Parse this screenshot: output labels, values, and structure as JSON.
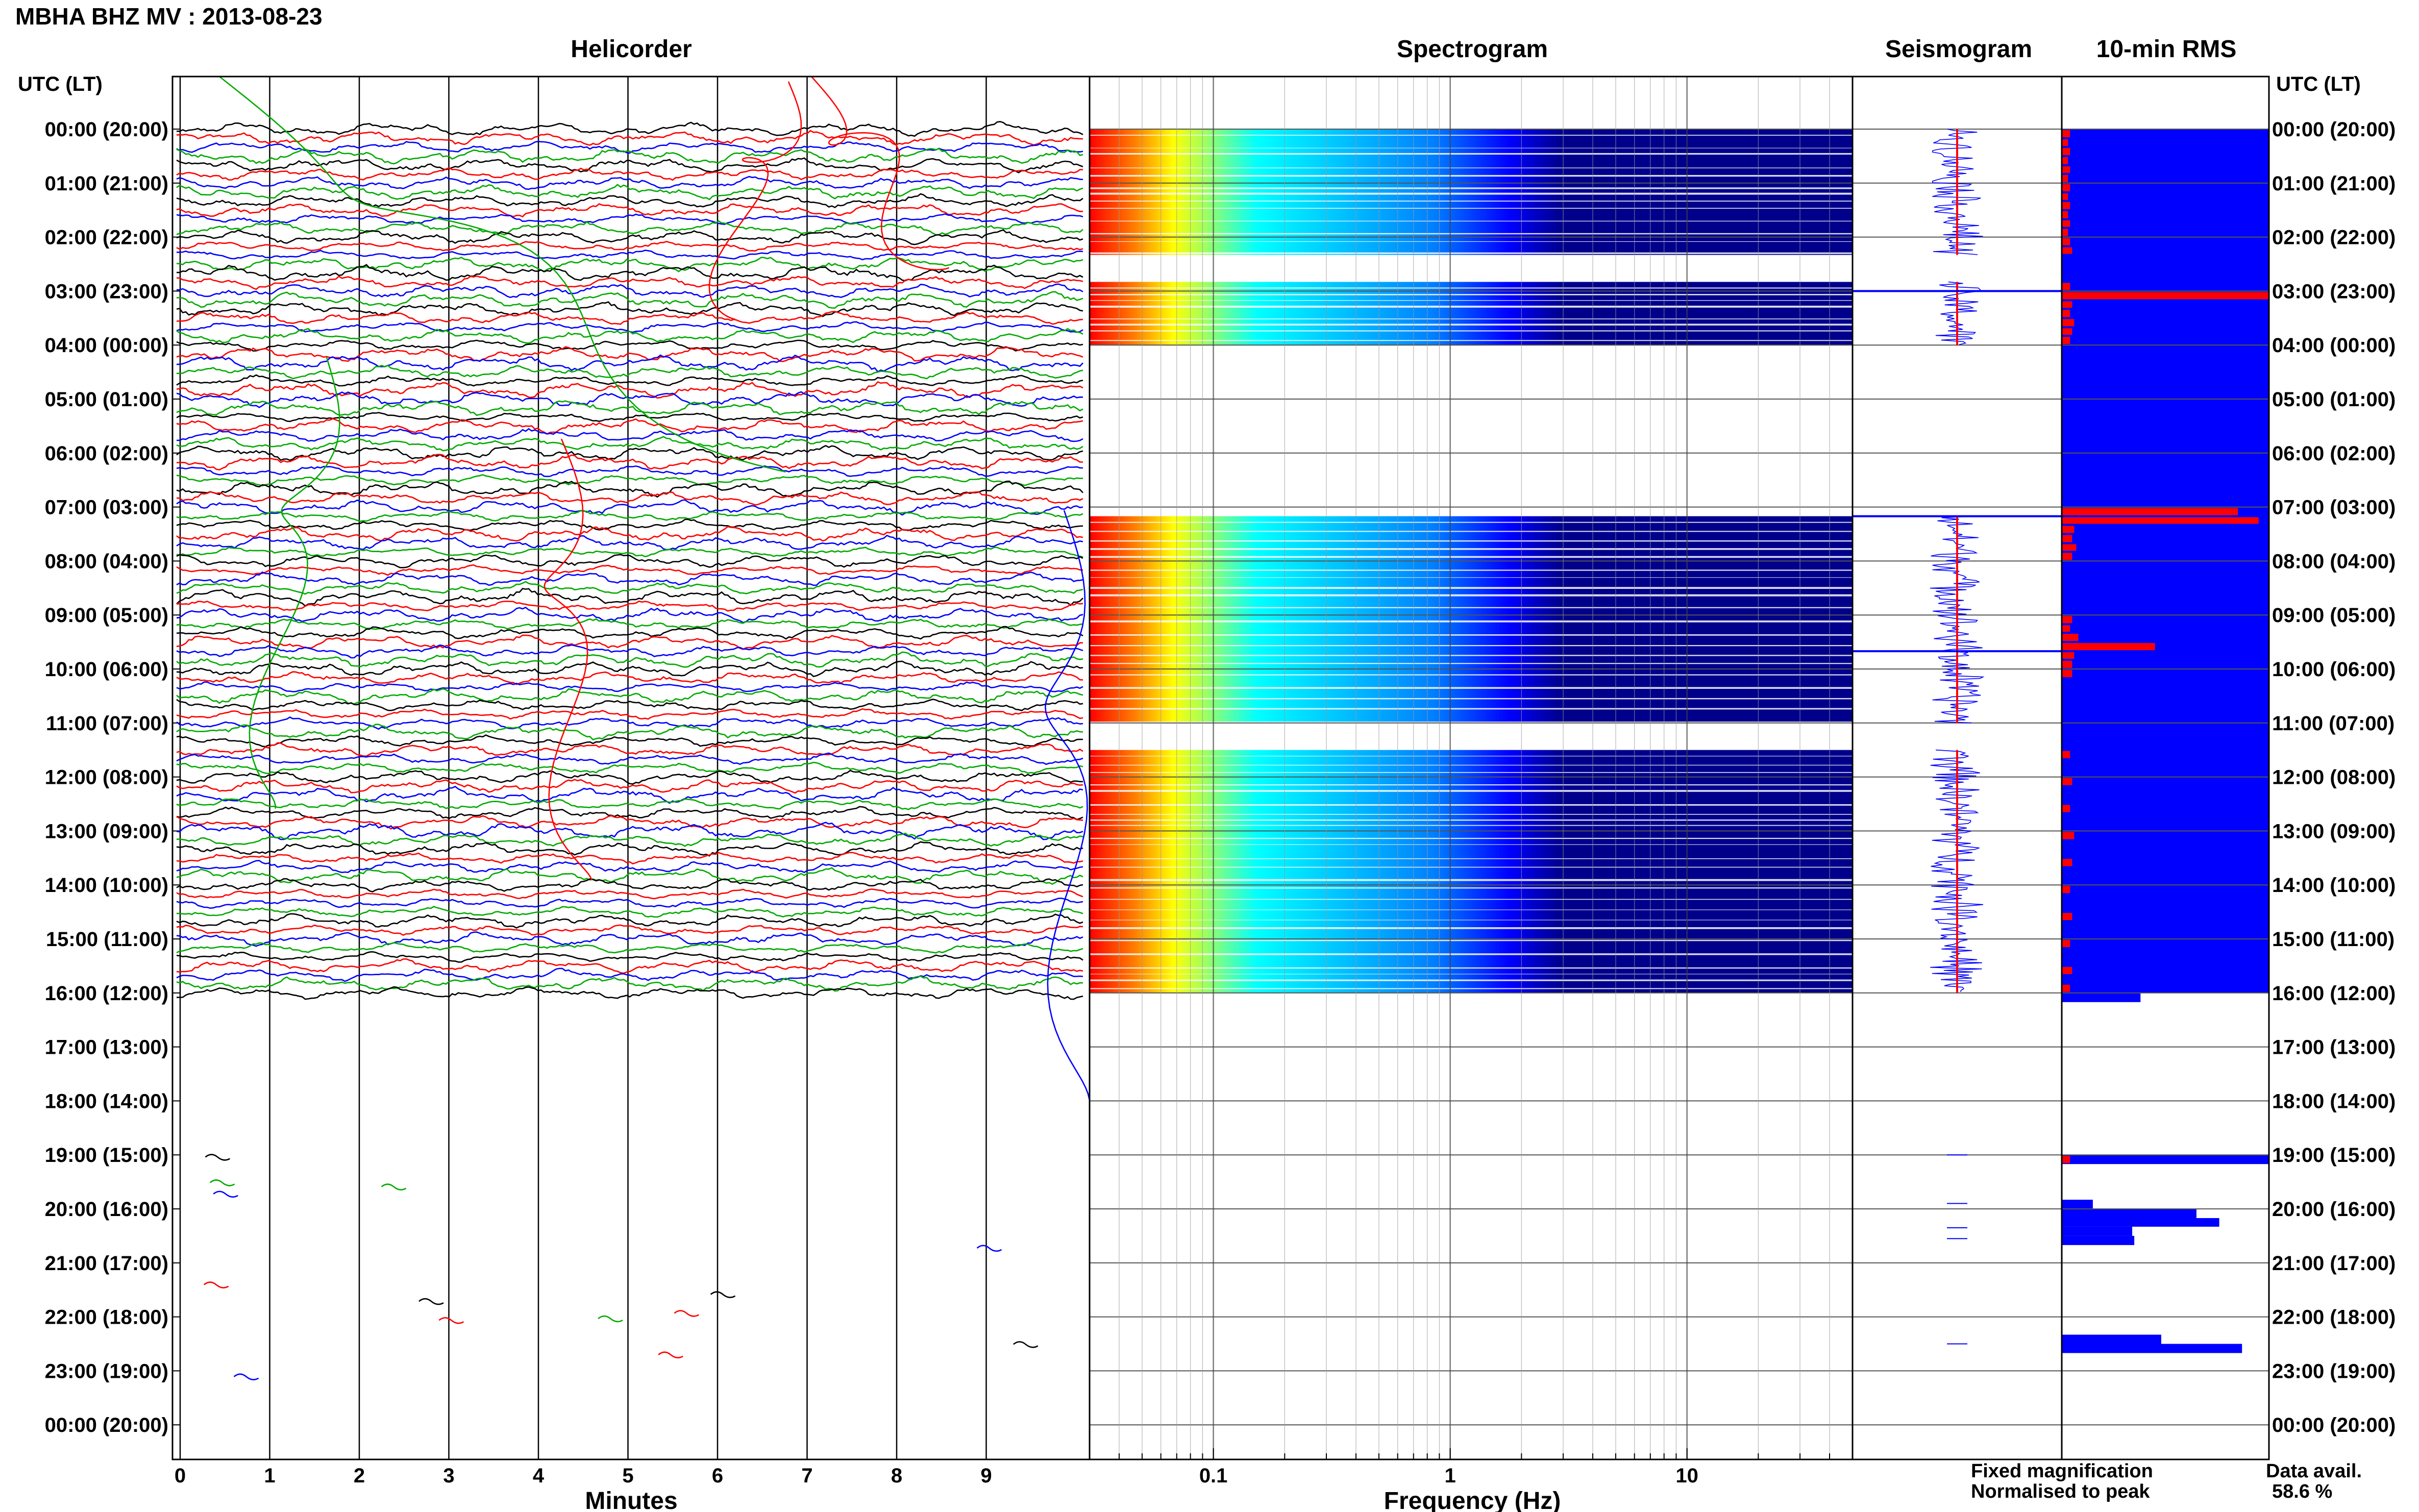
{
  "header": {
    "title": "MBHA BHZ MV : 2013-08-23"
  },
  "panels": {
    "helicorder": "Helicorder",
    "spectrogram": "Spectrogram",
    "seismogram": "Seismogram",
    "rms": "10-min RMS"
  },
  "axis_labels": {
    "time_left": "UTC (LT)",
    "time_right": "UTC (LT)",
    "minutes": "Minutes",
    "frequency": "Frequency (Hz)"
  },
  "legend": {
    "fixed": "Fixed magnification",
    "normalised": "Normalised to peak",
    "fixed_color": "#0000ff",
    "normalised_color": "#ff0000"
  },
  "availability": {
    "label": "Data avail.",
    "value": "58.6 %"
  },
  "colors": {
    "trace": [
      "#000000",
      "#ff0000",
      "#0000ff",
      "#00aa00"
    ],
    "spectrogram_low": "#00008b"
  },
  "chart_data": [
    {
      "type": "line",
      "title": "Helicorder",
      "xlabel": "Minutes",
      "ylabel": "UTC (LT)",
      "x_ticks": [
        0,
        1,
        2,
        3,
        4,
        5,
        6,
        7,
        8,
        9
      ],
      "xlim": [
        0,
        10
      ],
      "time_ticks": [
        "00:00 (20:00)",
        "01:00 (21:00)",
        "02:00 (22:00)",
        "03:00 (23:00)",
        "04:00 (00:00)",
        "05:00 (01:00)",
        "06:00 (02:00)",
        "07:00 (03:00)",
        "08:00 (04:00)",
        "09:00 (05:00)",
        "10:00 (06:00)",
        "11:00 (07:00)",
        "12:00 (08:00)",
        "13:00 (09:00)",
        "14:00 (10:00)",
        "15:00 (11:00)",
        "16:00 (12:00)",
        "17:00 (13:00)",
        "18:00 (14:00)",
        "19:00 (15:00)",
        "20:00 (16:00)",
        "21:00 (17:00)",
        "22:00 (18:00)",
        "23:00 (19:00)",
        "00:00 (20:00)"
      ],
      "ylim_hours": [
        0,
        24
      ],
      "trace_rows_per_hour": 6,
      "continuous_data_until_hour": 16
    },
    {
      "type": "heatmap",
      "title": "Spectrogram",
      "xlabel": "Frequency (Hz)",
      "x_scale": "log",
      "x_ticks": [
        "0.1",
        "1",
        "10"
      ],
      "xlim_hz": [
        0.03,
        50
      ],
      "data_blocks_hours": [
        [
          0,
          2.33
        ],
        [
          2.83,
          4.0
        ],
        [
          7.17,
          11.0
        ],
        [
          11.5,
          16.0
        ]
      ],
      "colormap": [
        "#ff0000",
        "#ff8000",
        "#ffff00",
        "#00ffff",
        "#0080ff",
        "#0000ff",
        "#00008b"
      ]
    },
    {
      "type": "line",
      "title": "Seismogram",
      "series": [
        {
          "name": "Fixed magnification",
          "color": "#0000ff"
        },
        {
          "name": "Normalised to peak",
          "color": "#ff0000"
        }
      ],
      "spikes_hours": [
        3.0,
        7.17,
        9.67
      ]
    },
    {
      "type": "bar",
      "title": "10-min RMS",
      "series": [
        {
          "name": "Fixed magnification",
          "color": "#0000ff"
        },
        {
          "name": "Normalised to peak",
          "color": "#ff0000"
        }
      ],
      "fixed_bars": [
        [
          0.0,
          16.0,
          1.0
        ],
        [
          16.0,
          16.17,
          0.38
        ],
        [
          19.0,
          19.17,
          1.0
        ],
        [
          19.83,
          20.0,
          0.15
        ],
        [
          20.0,
          20.17,
          0.65
        ],
        [
          20.17,
          20.33,
          0.76
        ],
        [
          20.33,
          20.5,
          0.34
        ],
        [
          20.5,
          20.67,
          0.35
        ],
        [
          22.33,
          22.5,
          0.48
        ],
        [
          22.5,
          22.67,
          0.87
        ]
      ],
      "normalised_bars": [
        [
          0.0,
          0.17,
          0.04
        ],
        [
          0.17,
          0.33,
          0.03
        ],
        [
          0.33,
          0.5,
          0.04
        ],
        [
          0.5,
          0.67,
          0.03
        ],
        [
          0.67,
          0.83,
          0.04
        ],
        [
          0.83,
          1.0,
          0.03
        ],
        [
          1.0,
          1.17,
          0.04
        ],
        [
          1.17,
          1.33,
          0.03
        ],
        [
          1.33,
          1.5,
          0.04
        ],
        [
          1.5,
          1.67,
          0.03
        ],
        [
          1.67,
          1.83,
          0.04
        ],
        [
          1.83,
          2.0,
          0.03
        ],
        [
          2.0,
          2.17,
          0.04
        ],
        [
          2.17,
          2.33,
          0.05
        ],
        [
          2.83,
          3.0,
          0.04
        ],
        [
          3.0,
          3.17,
          1.0
        ],
        [
          3.17,
          3.33,
          0.05
        ],
        [
          3.33,
          3.5,
          0.04
        ],
        [
          3.5,
          3.67,
          0.06
        ],
        [
          3.67,
          3.83,
          0.05
        ],
        [
          3.83,
          4.0,
          0.04
        ],
        [
          7.0,
          7.17,
          0.85
        ],
        [
          7.17,
          7.33,
          0.95
        ],
        [
          7.33,
          7.5,
          0.06
        ],
        [
          7.5,
          7.67,
          0.05
        ],
        [
          7.67,
          7.83,
          0.07
        ],
        [
          7.83,
          8.0,
          0.05
        ],
        [
          9.0,
          9.17,
          0.05
        ],
        [
          9.17,
          9.33,
          0.04
        ],
        [
          9.33,
          9.5,
          0.08
        ],
        [
          9.5,
          9.67,
          0.45
        ],
        [
          9.67,
          9.83,
          0.06
        ],
        [
          9.83,
          10.0,
          0.05
        ],
        [
          10.0,
          10.17,
          0.05
        ],
        [
          11.5,
          11.67,
          0.04
        ],
        [
          12.0,
          12.17,
          0.05
        ],
        [
          12.5,
          12.67,
          0.04
        ],
        [
          13.0,
          13.17,
          0.06
        ],
        [
          13.5,
          13.67,
          0.05
        ],
        [
          14.0,
          14.17,
          0.04
        ],
        [
          14.5,
          14.67,
          0.05
        ],
        [
          15.0,
          15.17,
          0.04
        ],
        [
          15.5,
          15.67,
          0.05
        ],
        [
          15.83,
          16.0,
          0.04
        ],
        [
          19.0,
          19.17,
          0.04
        ]
      ]
    }
  ]
}
